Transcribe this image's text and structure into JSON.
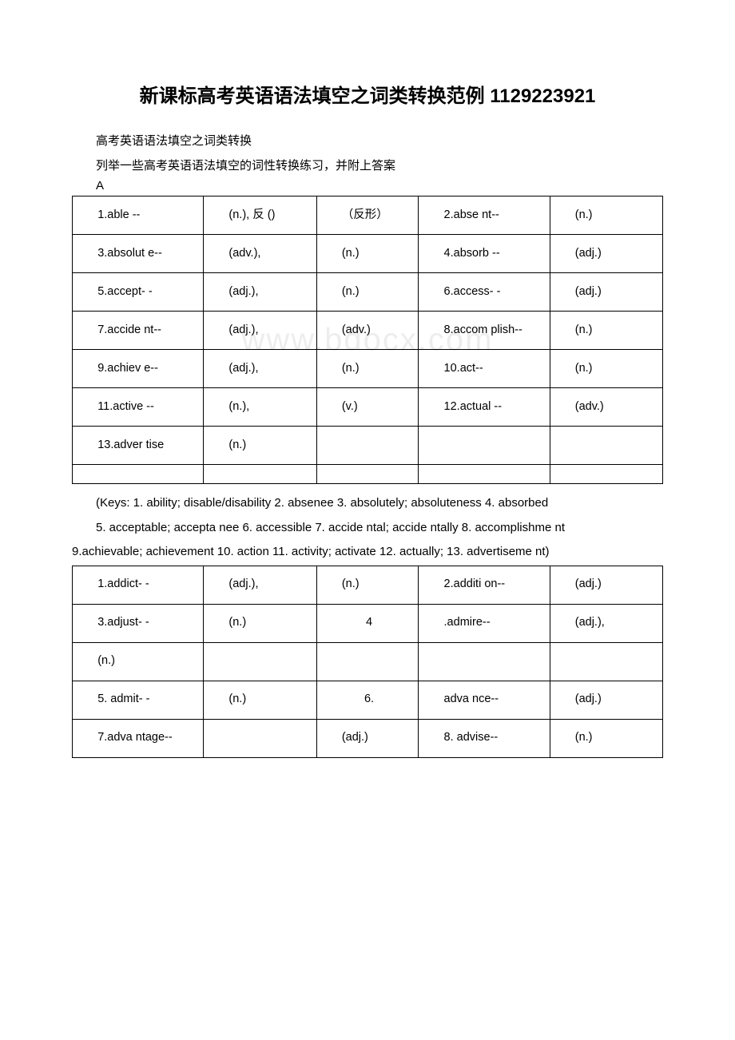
{
  "title": "新课标高考英语语法填空之词类转换范例 1129223921",
  "intro": {
    "line1": "高考英语语法填空之词类转换",
    "line2": "列举一些高考英语语法填空的词性转换练习，并附上答案",
    "section": "A"
  },
  "table1": {
    "rows": [
      [
        {
          "t": "1.able --",
          "indent": true
        },
        {
          "t": "(n.), 反 ()",
          "indent": true
        },
        {
          "t": "（反形）",
          "indent": true
        },
        {
          "t": "2.abse nt--",
          "indent": true
        },
        {
          "t": "(n.)",
          "indent": true
        }
      ],
      [
        {
          "t": "3.absolut e--",
          "indent": true
        },
        {
          "t": "(adv.),",
          "indent": true
        },
        {
          "t": "(n.)",
          "indent": true
        },
        {
          "t": "4.absorb --",
          "indent": true
        },
        {
          "t": "(adj.)",
          "indent": true
        }
      ],
      [
        {
          "t": "5.accept- -",
          "indent": true
        },
        {
          "t": "(adj.),",
          "indent": true
        },
        {
          "t": "(n.)",
          "indent": true
        },
        {
          "t": "6.access- -",
          "indent": true
        },
        {
          "t": "(adj.)",
          "indent": true
        }
      ],
      [
        {
          "t": "7.accide nt--",
          "indent": true
        },
        {
          "t": "(adj.),",
          "indent": true
        },
        {
          "t": "(adv.)",
          "indent": true
        },
        {
          "t": "8.accom plish--",
          "indent": true
        },
        {
          "t": "(n.)",
          "indent": true
        }
      ],
      [
        {
          "t": "9.achiev e--",
          "indent": true
        },
        {
          "t": "(adj.),",
          "indent": true
        },
        {
          "t": "(n.)",
          "indent": true
        },
        {
          "t": "10.act--",
          "indent": true
        },
        {
          "t": "(n.)",
          "indent": true
        }
      ],
      [
        {
          "t": "11.active --",
          "indent": true
        },
        {
          "t": "(n.),",
          "indent": true
        },
        {
          "t": "(v.)",
          "indent": true
        },
        {
          "t": "12.actual --",
          "indent": true
        },
        {
          "t": "(adv.)",
          "indent": true
        }
      ],
      [
        {
          "t": "13.adver tise",
          "indent": true
        },
        {
          "t": "(n.)",
          "indent": true
        },
        {
          "t": "",
          "indent": false
        },
        {
          "t": "",
          "indent": false
        },
        {
          "t": "",
          "indent": false
        }
      ],
      [
        {
          "t": "",
          "indent": false
        },
        {
          "t": "",
          "indent": false
        },
        {
          "t": "",
          "indent": false
        },
        {
          "t": "",
          "indent": false
        },
        {
          "t": "",
          "indent": false
        }
      ]
    ]
  },
  "keys1": {
    "l1": "(Keys: 1. ability; disable/disability 2. absenee 3. absolutely; absoluteness 4. absorbed",
    "l2": "5. acceptable; accepta nee 6. accessible 7. accide ntal; accide ntally 8. accomplishme nt",
    "l3": "9.achievable; achievement 10. action 11. activity; activate 12. actually; 13. advertiseme nt)"
  },
  "table2": {
    "rows": [
      [
        {
          "t": "1.addict- -",
          "indent": true
        },
        {
          "t": "(adj.),",
          "indent": true
        },
        {
          "t": "(n.)",
          "indent": true
        },
        {
          "t": "2.additi on--",
          "indent": true
        },
        {
          "t": "(adj.)",
          "indent": true
        }
      ],
      [
        {
          "t": "3.adjust- -",
          "indent": true
        },
        {
          "t": "(n.)",
          "indent": true
        },
        {
          "t": "4",
          "center": true
        },
        {
          "t": ".admire--",
          "indent": true
        },
        {
          "t": "(adj.),",
          "indent": true
        }
      ],
      [
        {
          "t": "(n.)",
          "indent": true
        },
        {
          "t": "",
          "indent": false
        },
        {
          "t": "",
          "indent": false
        },
        {
          "t": "",
          "indent": false
        },
        {
          "t": "",
          "indent": false
        }
      ],
      [
        {
          "t": "5. admit- -",
          "indent": true
        },
        {
          "t": "(n.)",
          "indent": true
        },
        {
          "t": "6.",
          "center": true
        },
        {
          "t": "adva nce--",
          "indent": true
        },
        {
          "t": "(adj.)",
          "indent": true
        }
      ],
      [
        {
          "t": "7.adva ntage--",
          "indent": true
        },
        {
          "t": "",
          "indent": false
        },
        {
          "t": "(adj.)",
          "indent": true
        },
        {
          "t": "8. advise--",
          "indent": true
        },
        {
          "t": "(n.)",
          "indent": true
        }
      ]
    ]
  }
}
